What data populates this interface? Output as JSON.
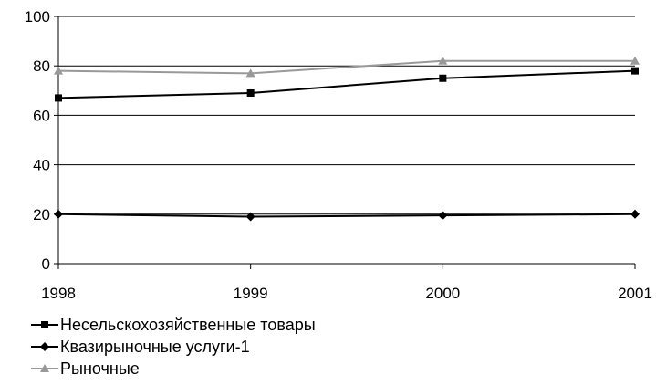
{
  "chart_data": {
    "type": "line",
    "x": [
      "1998",
      "1999",
      "2000",
      "2001"
    ],
    "ylim": [
      0,
      100
    ],
    "yticks": [
      "0",
      "20",
      "40",
      "60",
      "80",
      "100"
    ],
    "grid": true,
    "legend_position": "bottom-left",
    "series": [
      {
        "name": "Несельскохозяйственные товары",
        "values": [
          67,
          69,
          75,
          78
        ],
        "color": "#000000",
        "marker": "square"
      },
      {
        "name": "Квазирыночные услуги-1",
        "values": [
          20,
          19,
          19.5,
          20
        ],
        "color": "#000000",
        "marker": "diamond"
      },
      {
        "name": "Рыночные",
        "values": [
          78,
          77,
          82,
          82
        ],
        "color": "#999999",
        "marker": "triangle"
      }
    ]
  }
}
